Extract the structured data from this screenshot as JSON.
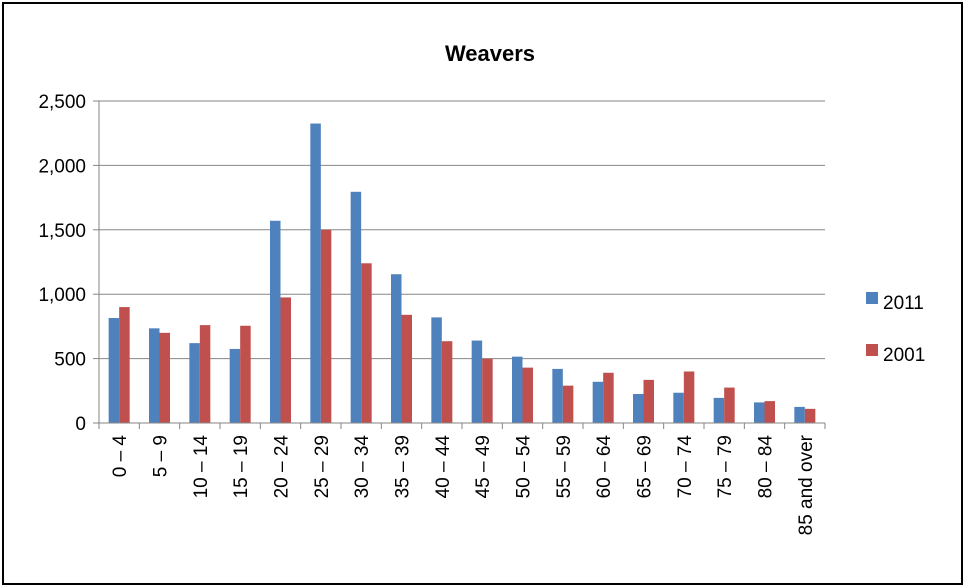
{
  "chart_data": {
    "type": "bar",
    "title": "Weavers",
    "xlabel": "",
    "ylabel": "",
    "ylim": [
      0,
      2500
    ],
    "yticks": [
      "0",
      "500",
      "1,000",
      "1,500",
      "2,000",
      "2,500"
    ],
    "grid": true,
    "legend_position": "right",
    "categories": [
      "0 – 4",
      "5 – 9",
      "10 – 14",
      "15 – 19",
      "20 – 24",
      "25 – 29",
      "30 – 34",
      "35 – 39",
      "40 – 44",
      "45 – 49",
      "50 – 54",
      "55 – 59",
      "60 – 64",
      "65 – 69",
      "70 – 74",
      "75 – 79",
      "80 – 84",
      "85 and over"
    ],
    "series": [
      {
        "name": "2011",
        "color": "#4f81bd",
        "values": [
          815,
          735,
          620,
          575,
          1570,
          2325,
          1795,
          1155,
          820,
          640,
          515,
          420,
          320,
          225,
          235,
          195,
          160,
          125
        ]
      },
      {
        "name": "2001",
        "color": "#c0504d",
        "values": [
          900,
          700,
          760,
          755,
          975,
          1500,
          1240,
          840,
          635,
          500,
          430,
          290,
          390,
          335,
          400,
          275,
          170,
          110
        ]
      }
    ]
  }
}
